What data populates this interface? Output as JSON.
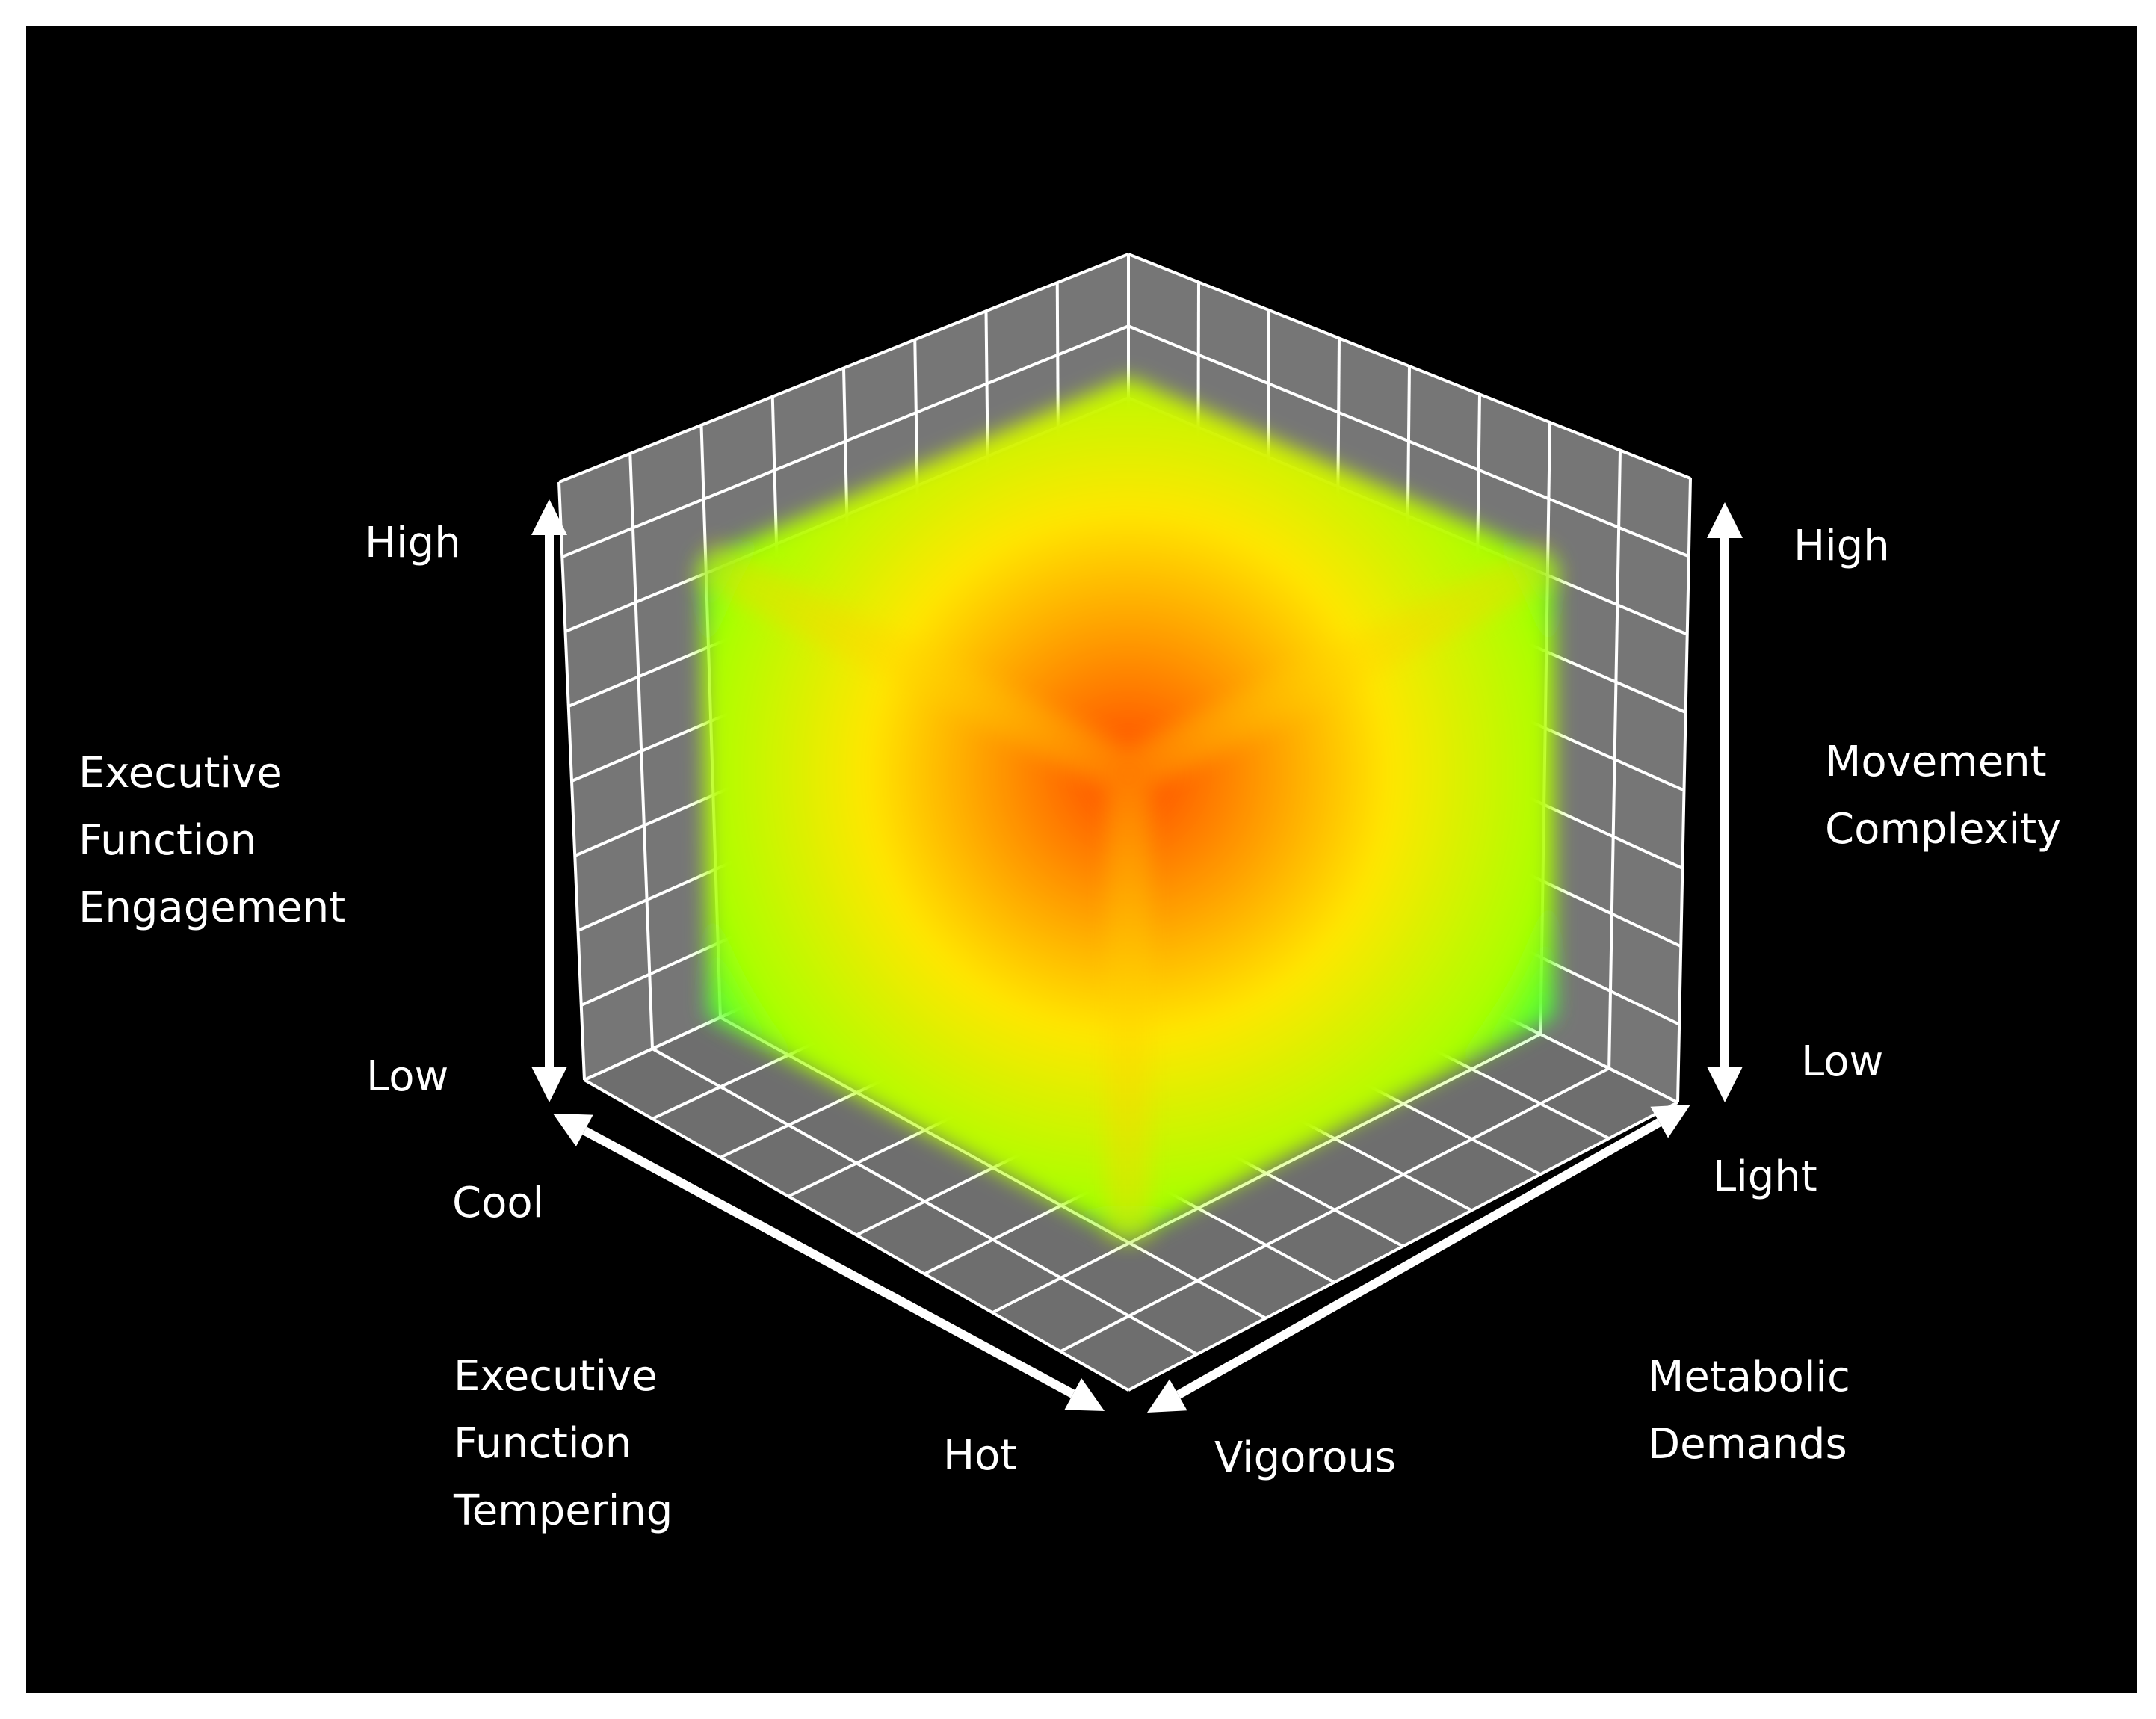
{
  "axes": {
    "executive_function_engagement": {
      "title_lines": [
        "Executive",
        "Function",
        "Engagement"
      ],
      "high": "High",
      "low": "Low"
    },
    "movement_complexity": {
      "title_lines": [
        "Movement",
        "Complexity"
      ],
      "high": "High",
      "low": "Low"
    },
    "executive_function_tempering": {
      "title_lines": [
        "Executive",
        "Function",
        "Tempering"
      ],
      "start": "Cool",
      "end": "Hot"
    },
    "metabolic_demands": {
      "title_lines": [
        "Metabolic",
        "Demands"
      ],
      "start": "Light",
      "end": "Vigorous"
    }
  },
  "colors": {
    "background": "#000000",
    "panel": "#767676",
    "grid": "#ffffff",
    "arrow": "#ffffff",
    "cube_center": "#ff4800",
    "cube_mid": "#ffe600",
    "cube_edge": "#aaff00",
    "cube_corner": "#00ff60"
  }
}
